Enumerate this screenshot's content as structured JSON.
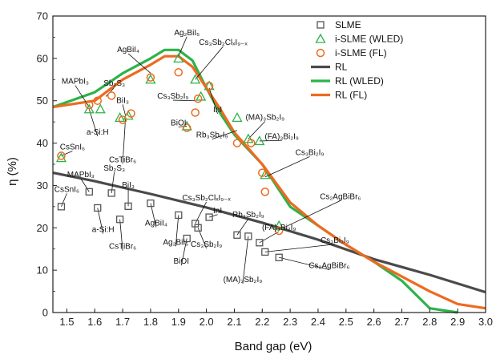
{
  "chart_data": {
    "type": "scatter",
    "xlabel": "Band gap (eV)",
    "ylabel": "η (%)",
    "xlim": [
      1.45,
      3.0
    ],
    "ylim": [
      0,
      70
    ],
    "xticks": [
      1.5,
      1.6,
      1.7,
      1.8,
      1.9,
      2.0,
      2.1,
      2.2,
      2.3,
      2.4,
      2.5,
      2.6,
      2.7,
      2.8,
      2.9,
      3.0
    ],
    "xtick_labels": [
      "1.5",
      "1.6",
      "1.7",
      "1.8",
      "1.9",
      "2.0",
      "2.1",
      "2.2",
      "2.3",
      "2.4",
      "2.5",
      "2.6",
      "2.7",
      "2.8",
      "2.9",
      "3.0"
    ],
    "yticks": [
      0,
      10,
      20,
      30,
      40,
      50,
      60,
      70
    ],
    "ytick_labels": [
      "0",
      "10",
      "20",
      "30",
      "40",
      "50",
      "60",
      "70"
    ],
    "legend_position": "top-right",
    "colors": {
      "slme": "#555555",
      "wled": "#2db34a",
      "fl": "#ee6a1f",
      "rl": "#4a4a4a"
    },
    "series": [
      {
        "name": "SLME",
        "kind": "square",
        "points": [
          [
            1.48,
            25
          ],
          [
            1.58,
            28.5
          ],
          [
            1.61,
            24.7
          ],
          [
            1.66,
            28.2
          ],
          [
            1.69,
            22
          ],
          [
            1.72,
            25.1
          ],
          [
            1.8,
            25.8
          ],
          [
            1.9,
            23
          ],
          [
            1.93,
            17.5
          ],
          [
            1.96,
            21
          ],
          [
            1.97,
            20
          ],
          [
            2.01,
            22.5
          ],
          [
            2.11,
            18.3
          ],
          [
            2.15,
            18
          ],
          [
            2.19,
            16.5
          ],
          [
            2.21,
            14.3
          ],
          [
            2.26,
            13
          ]
        ]
      },
      {
        "name": "i-SLME (WLED)",
        "kind": "triangle",
        "points": [
          [
            1.48,
            36.5
          ],
          [
            1.58,
            48
          ],
          [
            1.62,
            48
          ],
          [
            1.69,
            46
          ],
          [
            1.72,
            46.5
          ],
          [
            1.8,
            55
          ],
          [
            1.9,
            60
          ],
          [
            1.93,
            44
          ],
          [
            1.96,
            55
          ],
          [
            1.98,
            51
          ],
          [
            2.01,
            53.5
          ],
          [
            2.11,
            46
          ],
          [
            2.15,
            41
          ],
          [
            2.19,
            40.5
          ],
          [
            2.21,
            32.5
          ],
          [
            2.26,
            20.5
          ]
        ]
      },
      {
        "name": "i-SLME (FL)",
        "kind": "circle",
        "points": [
          [
            1.48,
            37
          ],
          [
            1.58,
            49
          ],
          [
            1.61,
            50
          ],
          [
            1.66,
            51.2
          ],
          [
            1.7,
            45.5
          ],
          [
            1.73,
            47
          ],
          [
            1.8,
            55.5
          ],
          [
            1.9,
            56.7
          ],
          [
            1.93,
            43.6
          ],
          [
            1.96,
            47.2
          ],
          [
            1.97,
            50.5
          ],
          [
            2.01,
            53.5
          ],
          [
            2.11,
            40
          ],
          [
            2.16,
            40
          ],
          [
            2.2,
            33
          ],
          [
            2.21,
            28.5
          ],
          [
            2.26,
            19.3
          ]
        ]
      },
      {
        "name": "RL",
        "kind": "line",
        "points": [
          [
            1.45,
            33
          ],
          [
            1.6,
            31
          ],
          [
            1.8,
            28
          ],
          [
            2.0,
            24.8
          ],
          [
            2.2,
            21.2
          ],
          [
            2.4,
            17.2
          ],
          [
            2.6,
            12.6
          ],
          [
            2.8,
            8.9
          ],
          [
            3.0,
            4.8
          ]
        ]
      },
      {
        "name": "RL (WLED)",
        "kind": "line",
        "points": [
          [
            1.45,
            48.5
          ],
          [
            1.6,
            52
          ],
          [
            1.7,
            56.5
          ],
          [
            1.8,
            60
          ],
          [
            1.85,
            62
          ],
          [
            1.9,
            62
          ],
          [
            1.95,
            59.5
          ],
          [
            2.0,
            53
          ],
          [
            2.05,
            47
          ],
          [
            2.1,
            42
          ],
          [
            2.2,
            35
          ],
          [
            2.3,
            25
          ],
          [
            2.4,
            20.5
          ],
          [
            2.5,
            16
          ],
          [
            2.6,
            12
          ],
          [
            2.7,
            7.5
          ],
          [
            2.8,
            1
          ],
          [
            2.9,
            0
          ]
        ]
      },
      {
        "name": "RL (FL)",
        "kind": "line",
        "points": [
          [
            1.45,
            48.5
          ],
          [
            1.6,
            50
          ],
          [
            1.7,
            55
          ],
          [
            1.8,
            58.5
          ],
          [
            1.85,
            60.5
          ],
          [
            1.9,
            60.5
          ],
          [
            1.95,
            58
          ],
          [
            2.0,
            53
          ],
          [
            2.05,
            48
          ],
          [
            2.1,
            42.5
          ],
          [
            2.2,
            35
          ],
          [
            2.3,
            26
          ],
          [
            2.4,
            20.5
          ],
          [
            2.5,
            16
          ],
          [
            2.6,
            12
          ],
          [
            2.7,
            8.5
          ],
          [
            2.8,
            5
          ],
          [
            2.9,
            2
          ],
          [
            3.0,
            1
          ]
        ]
      }
    ],
    "annotations": [
      {
        "text": "Ag₂BiI₅",
        "x": 1.93,
        "y": 65.5,
        "target": [
          1.9,
          60.5
        ]
      },
      {
        "text": "Cs₃Sb₂ClₓI₉₋ₓ",
        "x": 2.06,
        "y": 63.2,
        "target": [
          1.96,
          55
        ]
      },
      {
        "text": "AgBiI₄",
        "x": 1.72,
        "y": 61.5,
        "target": [
          1.8,
          56.5
        ]
      },
      {
        "text": "MAPbI₃",
        "x": 1.53,
        "y": 54,
        "target": [
          1.58,
          48.5
        ]
      },
      {
        "text": "Sb₂S₃",
        "x": 1.67,
        "y": 53.5,
        "target": [
          1.64,
          51
        ]
      },
      {
        "text": "Cs₃Sb₂I₉",
        "x": 1.88,
        "y": 50.5,
        "target": [
          1.96,
          50
        ]
      },
      {
        "text": "InI",
        "x": 2.04,
        "y": 47.3,
        "target": [
          2.01,
          53
        ]
      },
      {
        "text": "BiI₃",
        "x": 1.7,
        "y": 49.5,
        "target": [
          1.71,
          46.5
        ]
      },
      {
        "text": "a-Si:H",
        "x": 1.61,
        "y": 42,
        "target": [
          1.58,
          48
        ]
      },
      {
        "text": "CsTiBr₆",
        "x": 1.7,
        "y": 35.5,
        "target": [
          1.71,
          45.8
        ]
      },
      {
        "text": "BiOI",
        "x": 1.9,
        "y": 44.2,
        "target": [
          1.93,
          44
        ]
      },
      {
        "text": "Rb₃Sb₂I₉",
        "x": 2.02,
        "y": 41.3,
        "target": [
          2.11,
          43
        ]
      },
      {
        "text": "(MA)₃Sb₂I₉",
        "x": 2.21,
        "y": 45.5,
        "target": [
          2.15,
          41
        ]
      },
      {
        "text": "(FA)₃Bi₂I₉",
        "x": 2.27,
        "y": 41,
        "target": [
          2.19,
          40.5
        ]
      },
      {
        "text": "Cs₃Bi₂I₉",
        "x": 2.37,
        "y": 37.2,
        "target": [
          2.21,
          32
        ]
      },
      {
        "text": "CsSnI₆",
        "x": 1.52,
        "y": 38.5,
        "target": [
          1.48,
          37
        ]
      },
      {
        "text": "MAPbI₃",
        "x": 1.55,
        "y": 32,
        "target": [
          1.58,
          28.5
        ]
      },
      {
        "text": "Sb₂S₃",
        "x": 1.67,
        "y": 33.5,
        "target": [
          1.66,
          28.2
        ]
      },
      {
        "text": "BiI₃",
        "x": 1.72,
        "y": 29.5,
        "target": [
          1.72,
          25.1
        ]
      },
      {
        "text": "CsSnI₆",
        "x": 1.5,
        "y": 28.5,
        "target": [
          1.48,
          25
        ]
      },
      {
        "text": "Cs₃Sb₂ClₓI₉₋ₓ",
        "x": 2.0,
        "y": 26.5,
        "target": [
          1.96,
          21
        ]
      },
      {
        "text": "InI",
        "x": 2.04,
        "y": 23.5,
        "target": [
          2.01,
          22.5
        ]
      },
      {
        "text": "AgBiI₄",
        "x": 1.82,
        "y": 20.5,
        "target": [
          1.8,
          25.8
        ]
      },
      {
        "text": "a-Si:H",
        "x": 1.63,
        "y": 19,
        "target": [
          1.61,
          24.7
        ]
      },
      {
        "text": "CsTiBr₆",
        "x": 1.7,
        "y": 15,
        "target": [
          1.69,
          22
        ]
      },
      {
        "text": "Ag₂BiI₅",
        "x": 1.89,
        "y": 16,
        "target": [
          1.9,
          23
        ]
      },
      {
        "text": "Cs₃Sb₂I₉",
        "x": 2.0,
        "y": 15.5,
        "target": [
          1.97,
          20
        ]
      },
      {
        "text": "BiOI",
        "x": 1.91,
        "y": 11.5,
        "target": [
          1.93,
          17.5
        ]
      },
      {
        "text": "Rb₃Sb₂I₉",
        "x": 2.15,
        "y": 22.5,
        "target": [
          2.11,
          18.3
        ]
      },
      {
        "text": "(FA)₃Bi₂I₉",
        "x": 2.26,
        "y": 19.5,
        "target": [
          2.19,
          16.5
        ]
      },
      {
        "text": "Cs₂AgBiBr₆",
        "x": 2.48,
        "y": 26.8,
        "target": [
          2.26,
          19.5
        ]
      },
      {
        "text": "Cs₃Bi₂I₉",
        "x": 2.46,
        "y": 16.5,
        "target": [
          2.21,
          14.3
        ]
      },
      {
        "text": "(MA)₃Sb₂I₉",
        "x": 2.13,
        "y": 7.2,
        "target": [
          2.15,
          18
        ]
      },
      {
        "text": "Cs₂AgBiBr₆",
        "x": 2.44,
        "y": 10.5,
        "target": [
          2.26,
          13
        ]
      }
    ]
  }
}
